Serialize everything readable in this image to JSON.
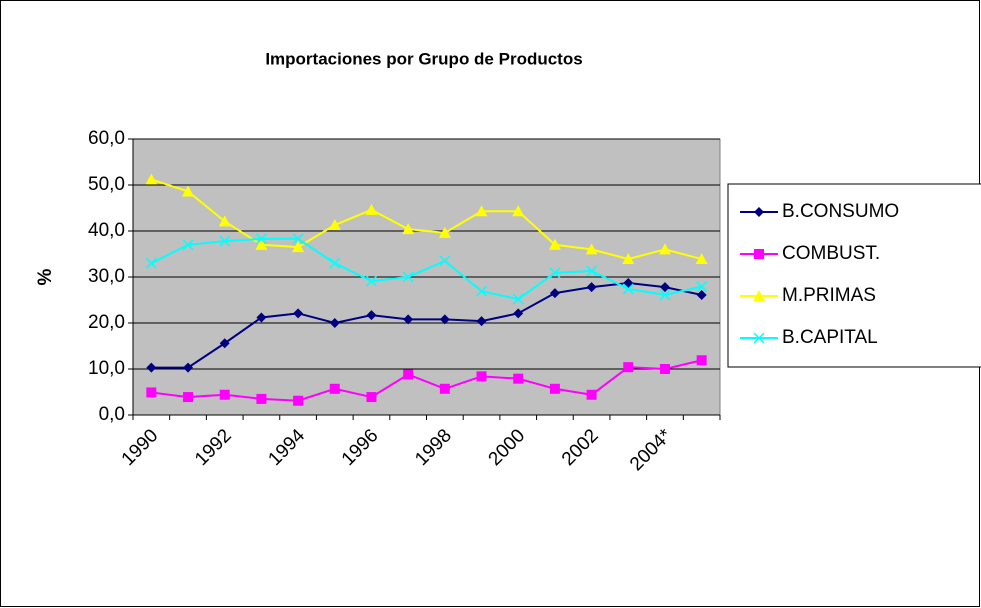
{
  "chart_data": {
    "type": "line",
    "title": "Importaciones por Grupo de Productos",
    "ylabel": "%",
    "categories": [
      "1990",
      null,
      "1992",
      null,
      "1994",
      null,
      "1996",
      null,
      "1998",
      null,
      "2000",
      null,
      "2002",
      null,
      "2004*",
      null
    ],
    "series": [
      {
        "name": "B.CONSUMO",
        "color": "#000080",
        "marker": "diamond",
        "values": [
          10.3,
          10.3,
          15.6,
          21.2,
          22.1,
          20.0,
          21.7,
          20.8,
          20.8,
          20.4,
          22.1,
          26.5,
          27.8,
          28.7,
          27.8,
          26.1
        ]
      },
      {
        "name": "COMBUST.",
        "color": "#ff00ff",
        "marker": "square",
        "values": [
          4.9,
          3.9,
          4.4,
          3.5,
          3.1,
          5.7,
          3.9,
          8.8,
          5.7,
          8.4,
          7.9,
          5.7,
          4.4,
          10.4,
          10.0,
          11.9
        ]
      },
      {
        "name": "M.PRIMAS",
        "color": "#ffff00",
        "marker": "triangle",
        "values": [
          51.2,
          48.6,
          42.1,
          37.0,
          36.5,
          41.3,
          44.6,
          40.4,
          39.6,
          44.3,
          44.3,
          37.0,
          36.0,
          33.9,
          36.0,
          33.9
        ]
      },
      {
        "name": "B.CAPITAL",
        "color": "#00ffff",
        "marker": "x",
        "values": [
          33.0,
          37.0,
          37.8,
          38.3,
          38.3,
          33.0,
          29.1,
          30.0,
          33.5,
          26.9,
          25.2,
          30.9,
          31.3,
          27.4,
          26.1,
          27.9
        ]
      }
    ],
    "ylim": [
      0,
      60
    ],
    "yticks": [
      {
        "value": 0,
        "label": "0,0"
      },
      {
        "value": 10,
        "label": "10,0"
      },
      {
        "value": 20,
        "label": "20,0"
      },
      {
        "value": 30,
        "label": "30,0"
      },
      {
        "value": 40,
        "label": "40,0"
      },
      {
        "value": 50,
        "label": "50,0"
      },
      {
        "value": 60,
        "label": "60,0"
      }
    ],
    "grid": true,
    "plot_background": "#c0c0c0",
    "legend": "right"
  }
}
